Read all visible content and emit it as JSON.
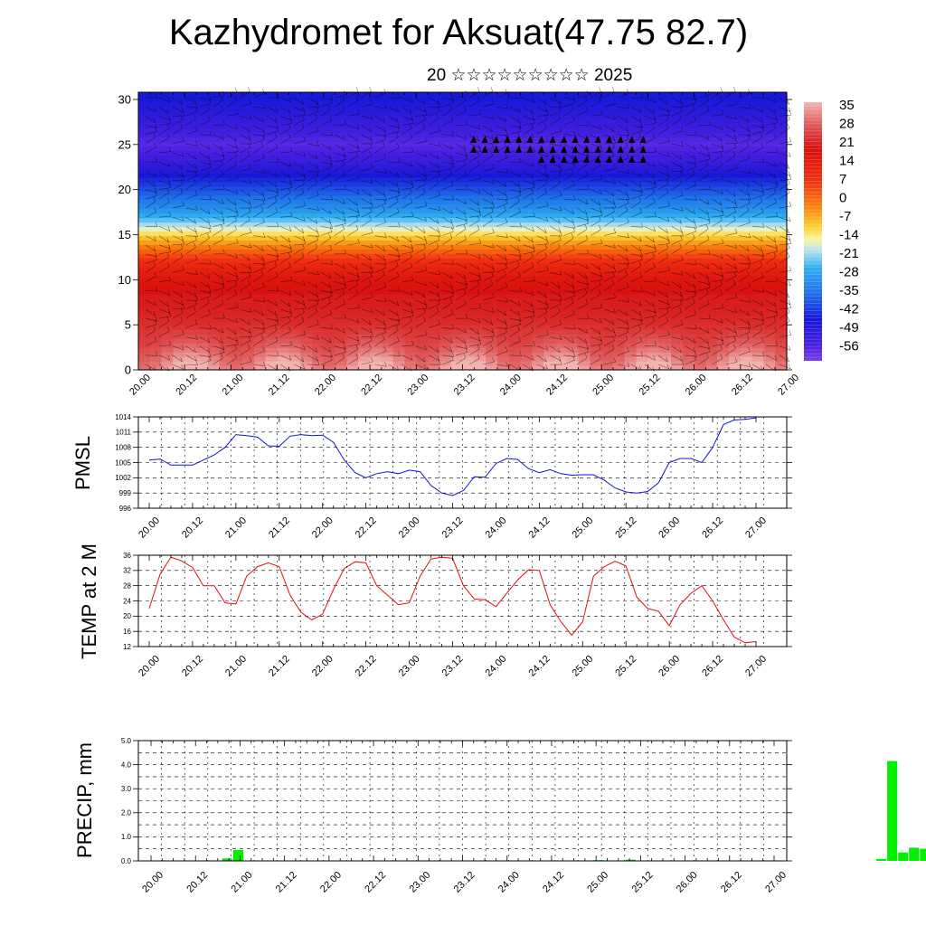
{
  "title": "Kazhydromet for Aksuat(47.75 82.7)",
  "subtitle": "20 ☆☆☆☆☆☆☆☆☆ 2025",
  "time_labels": [
    "20.00",
    "20.12",
    "21.00",
    "21.12",
    "22.00",
    "22.12",
    "23.00",
    "23.12",
    "24.00",
    "24.12",
    "25.00",
    "25.12",
    "26.00",
    "26.12",
    "27.00"
  ],
  "chart_data": [
    {
      "type": "heatmap",
      "name_note": "temperature cross-section with wind barbs",
      "x": [
        "20.00",
        "20.12",
        "21.00",
        "21.12",
        "22.00",
        "22.12",
        "23.00",
        "23.12",
        "24.00",
        "24.12",
        "25.00",
        "25.12",
        "26.00",
        "26.12",
        "27.00"
      ],
      "yticks": [
        0,
        5,
        10,
        15,
        20,
        25,
        30
      ],
      "ylim": [
        0,
        30.8
      ],
      "colorbar_labels": [
        "35",
        "28",
        "21",
        "14",
        "7",
        "0",
        "-7",
        "-14",
        "-21",
        "-28",
        "-35",
        "-42",
        "-49",
        "-56"
      ],
      "colorbar_range": [
        -60,
        38
      ],
      "profile_levels": [
        0,
        1,
        2,
        3,
        4,
        5,
        6,
        7,
        8,
        9,
        10,
        11,
        12,
        13,
        14,
        15,
        16,
        17,
        18,
        19,
        20,
        21,
        22,
        23,
        24,
        25,
        26,
        27,
        28,
        29,
        30
      ],
      "profile_values": [
        37,
        34,
        31,
        28,
        26,
        24,
        23,
        22,
        22,
        20,
        18,
        15,
        10,
        4,
        -3,
        -10,
        -18,
        -25,
        -30,
        -34,
        -38,
        -42,
        -46,
        -50,
        -53,
        -56,
        -54,
        -51,
        -49,
        -47,
        -45
      ],
      "grid": true
    },
    {
      "type": "line",
      "ylabel": "PMSL",
      "ylim": [
        996,
        1014
      ],
      "yticks": [
        996,
        999,
        1002,
        1005,
        1008,
        1011,
        1014
      ],
      "x": [
        "20.00",
        "20.03",
        "20.06",
        "20.09",
        "20.12",
        "20.15",
        "20.18",
        "20.21",
        "21.00",
        "21.03",
        "21.06",
        "21.09",
        "21.12",
        "21.15",
        "21.18",
        "21.21",
        "22.00",
        "22.03",
        "22.06",
        "22.09",
        "22.12",
        "22.15",
        "22.18",
        "22.21",
        "23.00",
        "23.03",
        "23.06",
        "23.09",
        "23.12",
        "23.15",
        "23.18",
        "23.21",
        "24.00",
        "24.03",
        "24.06",
        "24.09",
        "24.12",
        "24.15",
        "24.18",
        "24.21",
        "25.00",
        "25.03",
        "25.06",
        "25.09",
        "25.12",
        "25.15",
        "25.18",
        "25.21",
        "26.00",
        "26.03",
        "26.06",
        "26.09",
        "26.12",
        "26.15",
        "26.18",
        "26.21",
        "27.00"
      ],
      "values": [
        1005.5,
        1005.7,
        1004.5,
        1004.5,
        1004.5,
        1005.5,
        1006.5,
        1008,
        1010.5,
        1010.3,
        1010,
        1008.3,
        1008.2,
        1010.2,
        1010.5,
        1010.3,
        1010.4,
        1009,
        1005.5,
        1003,
        1002,
        1002.8,
        1003.2,
        1002.8,
        1003.5,
        1003.2,
        1000.5,
        999,
        998.5,
        999.5,
        1002.2,
        1002.1,
        1004.8,
        1005.8,
        1005.6,
        1003.8,
        1003,
        1003.6,
        1002.8,
        1002.5,
        1002.6,
        1002.6,
        1001.5,
        1000,
        999.2,
        999,
        999.3,
        1001,
        1005,
        1005.8,
        1005.8,
        1005,
        1008,
        1012.5,
        1013.4,
        1013.5,
        1013.8
      ],
      "series_color": "#1010e0",
      "grid": true
    },
    {
      "type": "line",
      "ylabel": "TEMP at 2 M",
      "ylim": [
        12,
        36
      ],
      "yticks": [
        12,
        16,
        20,
        24,
        28,
        32,
        36
      ],
      "x": [
        "20.00",
        "20.03",
        "20.06",
        "20.09",
        "20.12",
        "20.15",
        "20.18",
        "20.21",
        "21.00",
        "21.03",
        "21.06",
        "21.09",
        "21.12",
        "21.15",
        "21.18",
        "21.21",
        "22.00",
        "22.03",
        "22.06",
        "22.09",
        "22.12",
        "22.15",
        "22.18",
        "22.21",
        "23.00",
        "23.03",
        "23.06",
        "23.09",
        "23.12",
        "23.15",
        "23.18",
        "23.21",
        "24.00",
        "24.03",
        "24.06",
        "24.09",
        "24.12",
        "24.15",
        "24.18",
        "24.21",
        "25.00",
        "25.03",
        "25.06",
        "25.09",
        "25.12",
        "25.15",
        "25.18",
        "25.21",
        "26.00",
        "26.03",
        "26.06",
        "26.09",
        "26.12",
        "26.15",
        "26.18",
        "26.21",
        "27.00"
      ],
      "values": [
        22,
        31,
        35.5,
        34.5,
        32.8,
        28,
        28,
        23.5,
        23.2,
        30.5,
        33,
        34,
        33,
        25.5,
        21,
        19,
        20.5,
        27,
        32.5,
        34.3,
        34,
        28,
        25.5,
        23,
        23.5,
        30.5,
        35,
        35.5,
        35.2,
        28,
        24.5,
        24.3,
        22.5,
        26,
        29.5,
        32.2,
        32,
        23,
        18.5,
        15,
        18.5,
        30.5,
        33,
        34.4,
        33.2,
        25,
        22,
        21.3,
        17.5,
        23,
        26,
        28,
        24,
        19,
        14.5,
        13,
        13.3
      ],
      "series_color": "#e01010",
      "grid": true
    },
    {
      "type": "bar",
      "ylabel": "PRECIP, mm",
      "ylim": [
        0,
        5.0
      ],
      "yticks": [
        "0.0",
        "1.0",
        "2.0",
        "3.0",
        "4.0",
        "5.0"
      ],
      "x_index": [
        7,
        8,
        41,
        44,
        67,
        68,
        69,
        70,
        71,
        72
      ],
      "x_note": "3-hour steps from 20.00",
      "values": [
        0.1,
        0.45,
        0.03,
        0.05,
        0.08,
        4.15,
        0.35,
        0.55,
        0.5,
        0.3
      ],
      "bar_color": "#00f000",
      "grid": true
    }
  ]
}
